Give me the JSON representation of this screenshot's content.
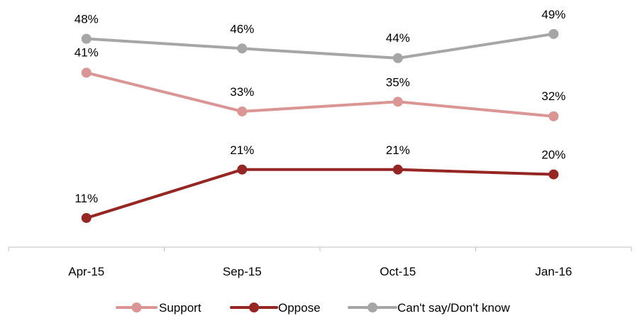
{
  "chart_data": {
    "type": "line",
    "title": "",
    "xlabel": "",
    "ylabel": "",
    "categories": [
      "Apr-15",
      "Sep-15",
      "Oct-15",
      "Jan-16"
    ],
    "ylim": [
      0,
      55
    ],
    "grid": false,
    "legend": "bottom",
    "series": [
      {
        "name": "Support",
        "color": "#DA9694",
        "values": [
          41,
          33,
          35,
          32
        ],
        "labels": [
          "41%",
          "33%",
          "35%",
          "32%"
        ]
      },
      {
        "name": "Oppose",
        "color": "#962623",
        "values": [
          11,
          21,
          21,
          20
        ],
        "labels": [
          "11%",
          "21%",
          "21%",
          "20%"
        ]
      },
      {
        "name": "Can't say/Don't know",
        "color": "#A6A6A6",
        "values": [
          48,
          46,
          44,
          49
        ],
        "labels": [
          "48%",
          "46%",
          "44%",
          "49%"
        ]
      }
    ]
  }
}
